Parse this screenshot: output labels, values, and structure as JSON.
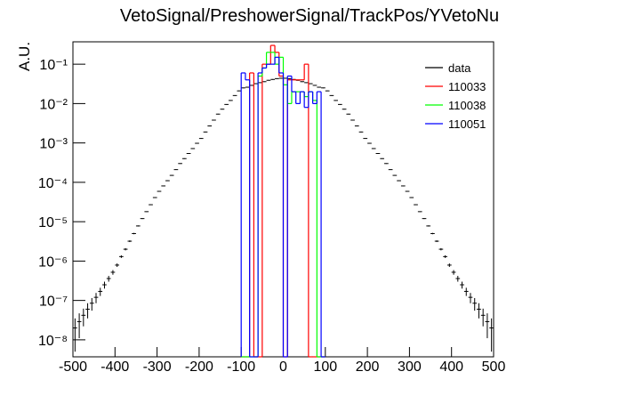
{
  "chart_data": {
    "type": "histogram",
    "title": "VetoSignal/PreshowerSignal/TrackPos/YVetoNu",
    "ylabel": "A.U.",
    "xlim": [
      -500,
      500
    ],
    "ylim": [
      3.7e-09,
      0.37
    ],
    "log_y": true,
    "legend": "top-right",
    "xticks": [
      -500,
      -400,
      -300,
      -200,
      -100,
      0,
      100,
      200,
      300,
      400,
      500
    ],
    "yticks": [
      {
        "value": 1e-08,
        "label": "10⁻⁸"
      },
      {
        "value": 1e-07,
        "label": "10⁻⁷"
      },
      {
        "value": 1e-06,
        "label": "10⁻⁶"
      },
      {
        "value": 1e-05,
        "label": "10⁻⁵"
      },
      {
        "value": 0.0001,
        "label": "10⁻⁴"
      },
      {
        "value": 0.001,
        "label": "10⁻³"
      },
      {
        "value": 0.01,
        "label": "10⁻²"
      },
      {
        "value": 0.1,
        "label": "10⁻¹"
      }
    ],
    "series": [
      {
        "name": "data",
        "color": "#000000",
        "bins": [
          -500,
          -490,
          -480,
          -470,
          -460,
          -450,
          -440,
          -430,
          -420,
          -410,
          -400,
          -390,
          -380,
          -370,
          -360,
          -350,
          -340,
          -330,
          -320,
          -310,
          -300,
          -290,
          -280,
          -270,
          -260,
          -250,
          -240,
          -230,
          -220,
          -210,
          -200,
          -190,
          -180,
          -170,
          -160,
          -150,
          -140,
          -130,
          -120,
          -110,
          -100,
          -90,
          -80,
          -70,
          -60,
          -50,
          -40,
          -30,
          -20,
          -10,
          0,
          10,
          20,
          30,
          40,
          50,
          60,
          70,
          80,
          90,
          100,
          110,
          120,
          130,
          140,
          150,
          160,
          170,
          180,
          190,
          200,
          210,
          220,
          230,
          240,
          250,
          260,
          270,
          280,
          290,
          300,
          310,
          320,
          330,
          340,
          350,
          360,
          370,
          380,
          390,
          400,
          410,
          420,
          430,
          440,
          450,
          460,
          470,
          480,
          490,
          500
        ],
        "values": [
          2e-08,
          2.9e-08,
          4.2e-08,
          6e-08,
          8.5e-08,
          1.2e-07,
          1.7e-07,
          2.5e-07,
          3.6e-07,
          5.2e-07,
          7.9e-07,
          1.3e-06,
          2e-06,
          3.2e-06,
          5e-06,
          7.8e-06,
          1.2e-05,
          1.8e-05,
          2.7e-05,
          4.1e-05,
          5.9e-05,
          8.1e-05,
          0.00011,
          0.00015,
          0.00021,
          0.0003,
          0.0004,
          0.00054,
          0.00072,
          0.00098,
          0.0013,
          0.0019,
          0.0027,
          0.0038,
          0.0054,
          0.0072,
          0.0095,
          0.012,
          0.016,
          0.021,
          0.025,
          0.026,
          0.029,
          0.032,
          0.034,
          0.036,
          0.039,
          0.041,
          0.043,
          0.044,
          0.044,
          0.043,
          0.041,
          0.039,
          0.036,
          0.034,
          0.032,
          0.029,
          0.026,
          0.025,
          0.021,
          0.016,
          0.012,
          0.0095,
          0.0072,
          0.0054,
          0.0038,
          0.0027,
          0.0019,
          0.0013,
          0.00098,
          0.00072,
          0.00054,
          0.0004,
          0.0003,
          0.00021,
          0.00015,
          0.00011,
          8.1e-05,
          5.9e-05,
          4.1e-05,
          2.7e-05,
          1.8e-05,
          1.2e-05,
          7.8e-06,
          5e-06,
          3.2e-06,
          2e-06,
          1.3e-06,
          7.9e-07,
          5.2e-07,
          3.6e-07,
          2.5e-07,
          1.7e-07,
          1.2e-07,
          8.5e-08,
          6e-08,
          4.2e-08,
          2.9e-08,
          2e-08
        ],
        "errors": [
          1.5e-08,
          1.8e-08,
          2e-08,
          2.5e-08,
          3e-08,
          3.5e-08,
          4e-08,
          5e-08,
          6e-08,
          7e-08,
          8e-08,
          1e-07,
          1.3e-07,
          1.6e-07,
          2e-07,
          2.5e-07,
          3e-07,
          3.5e-07,
          4e-07,
          5e-07,
          1.2e-06,
          1.6e-06,
          2.2e-06,
          3e-06,
          4e-06,
          6e-06,
          8e-06,
          1.1e-05,
          1.4e-05,
          2e-05,
          2.6e-05,
          3.8e-05,
          5.4e-05,
          7.6e-05,
          0.00011,
          0.00014,
          0.00019,
          0.00024,
          0.00032,
          0.00042,
          0.0005,
          0.00052,
          0.00058,
          0.00064,
          0.00068,
          0.00072,
          0.00078,
          0.00082,
          0.00086,
          0.00088,
          0.00088,
          0.00086,
          0.00082,
          0.00078,
          0.00072,
          0.00068,
          0.00064,
          0.00058,
          0.00052,
          0.0005,
          0.00042,
          0.00032,
          0.00024,
          0.00019,
          0.00014,
          0.00011,
          7.6e-05,
          5.4e-05,
          3.8e-05,
          2.6e-05,
          2e-05,
          1.4e-05,
          1.1e-05,
          8e-06,
          6e-06,
          4e-06,
          3e-06,
          2.2e-06,
          1.6e-06,
          1.2e-06,
          5e-07,
          4e-07,
          3.5e-07,
          3e-07,
          2.5e-07,
          2e-07,
          1.6e-07,
          1.3e-07,
          1e-07,
          8e-08,
          7e-08,
          6e-08,
          5e-08,
          4e-08,
          3.5e-08,
          3e-08,
          2.5e-08,
          2e-08,
          1.8e-08,
          1.5e-08
        ]
      },
      {
        "name": "110033",
        "color": "#ff0000",
        "bins": [
          -100,
          -90,
          -80,
          -70,
          -60,
          -50,
          -40,
          -30,
          -20,
          -10,
          0,
          10,
          20,
          30,
          40,
          50,
          60,
          70,
          80,
          90,
          100
        ],
        "values": [
          0,
          0,
          0.06,
          0,
          0,
          0.1,
          0.1,
          0.3,
          0.2,
          0.05,
          0,
          0.04,
          0.04,
          0.04,
          0.04,
          0.1,
          0,
          0,
          0,
          0
        ]
      },
      {
        "name": "110038",
        "color": "#00ff00",
        "bins": [
          -100,
          -90,
          -80,
          -70,
          -60,
          -50,
          -40,
          -30,
          -20,
          -10,
          0,
          10,
          20,
          30,
          40,
          50,
          60,
          70,
          80,
          90,
          100
        ],
        "values": [
          0,
          0,
          0,
          0,
          0.05,
          0.08,
          0.2,
          0.2,
          0.1,
          0.15,
          0.03,
          0.01,
          0.02,
          0.02,
          0.02,
          0.015,
          0.02,
          0.012,
          0,
          0
        ]
      },
      {
        "name": "110051",
        "color": "#0000ff",
        "bins": [
          -100,
          -90,
          -80,
          -70,
          -60,
          -50,
          -40,
          -30,
          -20,
          -10,
          0,
          10,
          20,
          30,
          40,
          50,
          60,
          70,
          80,
          90,
          100
        ],
        "values": [
          0.06,
          0.04,
          0,
          0,
          0.06,
          0.08,
          0.1,
          0.1,
          0.15,
          0.06,
          0,
          0.05,
          0.02,
          0.01,
          0.02,
          0.008,
          0.02,
          0.01,
          0.02,
          0
        ]
      }
    ]
  }
}
